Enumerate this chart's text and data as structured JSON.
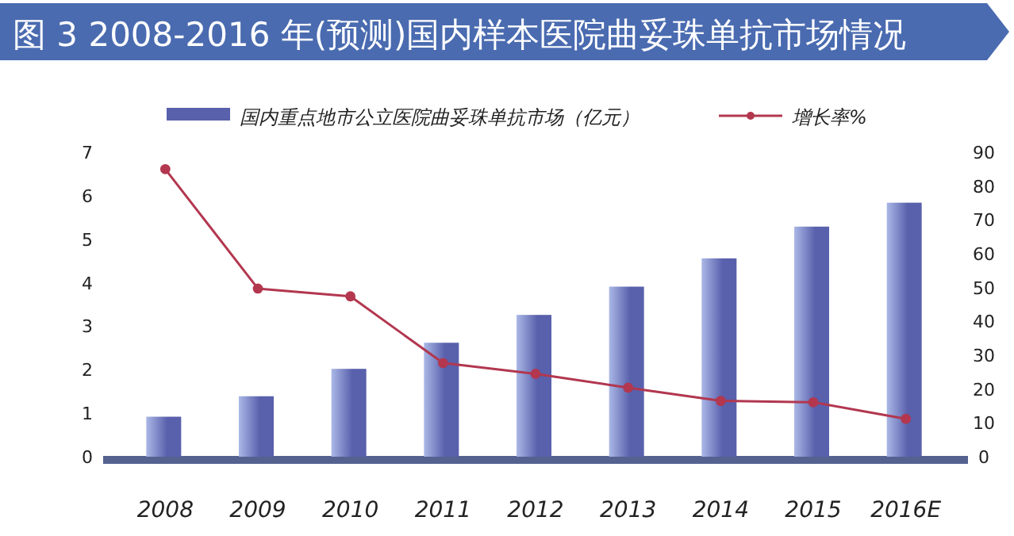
{
  "chart_data": {
    "type": "bar",
    "title": "图 3  2008-2016 年(预测)国内样本医院曲妥珠单抗市场情况",
    "categories": [
      "2008",
      "2009",
      "2010",
      "2011",
      "2012",
      "2013",
      "2014",
      "2015",
      "2016E"
    ],
    "series": [
      {
        "name": "国内重点地市公立医院曲妥珠单抗市场（亿元）",
        "color": "#5960ac",
        "values": [
          0.92,
          1.39,
          2.02,
          2.62,
          3.26,
          3.91,
          4.56,
          5.29,
          5.84
        ]
      },
      {
        "name": "增长率%",
        "type": "line",
        "axis": "y2",
        "marker": "circle",
        "color": "#b2374f",
        "values": [
          85,
          49.7,
          47.4,
          27.7,
          24.5,
          20.4,
          16.5,
          16.1,
          11.2
        ]
      }
    ],
    "ylim": [
      0,
      7
    ],
    "yticks": [
      0,
      1,
      2,
      3,
      4,
      5,
      6,
      7
    ],
    "y2lim": [
      0,
      90
    ],
    "y2ticks": [
      0,
      10,
      20,
      30,
      40,
      50,
      60,
      70,
      80,
      90
    ],
    "legend": "top",
    "grid": false
  }
}
